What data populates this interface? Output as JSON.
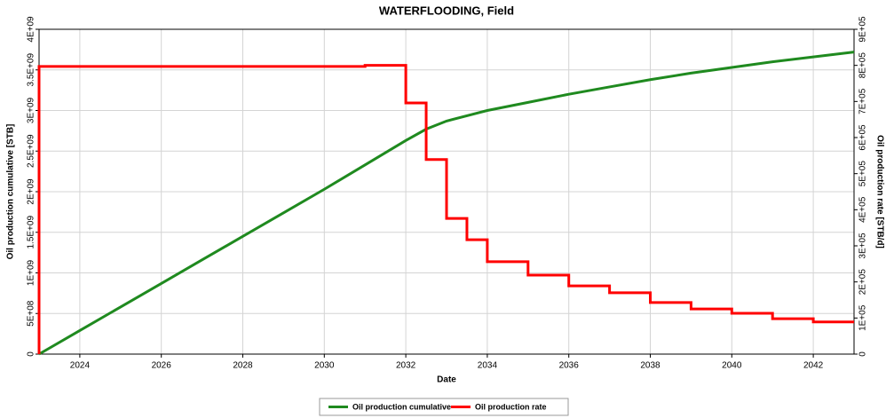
{
  "chart_data": {
    "type": "line",
    "title": "WATERFLOODING, Field",
    "x_label": "Date",
    "y_label": "Oil production cumulative [STB]",
    "y2_label": "Oil production rate [STB/d]",
    "xlim": [
      2023,
      2043
    ],
    "xticks": [
      2024,
      2026,
      2028,
      2030,
      2032,
      2034,
      2036,
      2038,
      2040,
      2042
    ],
    "ylim": [
      0,
      4000000000
    ],
    "yticks": [
      0,
      {
        "value": 500000000,
        "label": "5E+08"
      },
      {
        "value": 1000000000,
        "label": "1E+09"
      },
      {
        "value": 1500000000,
        "label": "1.5E+09"
      },
      {
        "value": 2000000000,
        "label": "2E+09"
      },
      {
        "value": 2500000000,
        "label": "2.5E+09"
      },
      {
        "value": 3000000000,
        "label": "3E+09"
      },
      {
        "value": 3500000000,
        "label": "3.5E+09"
      },
      {
        "value": 4000000000,
        "label": "4E+09"
      }
    ],
    "y2lim": [
      0,
      900000
    ],
    "y2ticks": [
      0,
      {
        "value": 100000,
        "label": "1E+05"
      },
      {
        "value": 200000,
        "label": "2E+05"
      },
      {
        "value": 300000,
        "label": "3E+05"
      },
      {
        "value": 400000,
        "label": "4E+05"
      },
      {
        "value": 500000,
        "label": "5E+05"
      },
      {
        "value": 600000,
        "label": "6E+05"
      },
      {
        "value": 700000,
        "label": "7E+05"
      },
      {
        "value": 800000,
        "label": "8E+05"
      },
      {
        "value": 900000,
        "label": "9E+05"
      }
    ],
    "grid": true,
    "legend": "bottom",
    "series": [
      {
        "name": "Oil production cumulative",
        "color": "#1f8a1f",
        "x": [
          2023,
          2024,
          2025,
          2026,
          2027,
          2028,
          2029,
          2030,
          2031,
          2032,
          2032.5,
          2033,
          2034,
          2035,
          2036,
          2037,
          2038,
          2039,
          2040,
          2041,
          2042,
          2043
        ],
        "values": [
          0,
          290000000,
          580000000,
          870000000,
          1160000000,
          1450000000,
          1740000000,
          2030000000,
          2330000000,
          2630000000,
          2770000000,
          2870000000,
          3000000000,
          3100000000,
          3200000000,
          3290000000,
          3380000000,
          3460000000,
          3530000000,
          3600000000,
          3660000000,
          3720000000
        ]
      },
      {
        "name": "Oil production rate",
        "color": "#ff0000",
        "axis": "y2",
        "x": [
          2023,
          2023,
          2031,
          2031,
          2032,
          2032,
          2032.5,
          2032.5,
          2033,
          2033,
          2033.5,
          2033.5,
          2034,
          2034,
          2035,
          2035,
          2036,
          2036,
          2037,
          2037,
          2038,
          2038,
          2039,
          2039,
          2040,
          2040,
          2041,
          2041,
          2042,
          2042,
          2043
        ],
        "values": [
          0,
          797000,
          797000,
          800000,
          800000,
          696000,
          696000,
          539000,
          539000,
          376000,
          376000,
          317000,
          317000,
          256000,
          256000,
          219000,
          219000,
          189000,
          189000,
          170000,
          170000,
          143000,
          143000,
          125000,
          125000,
          113000,
          113000,
          98000,
          98000,
          89000,
          89000
        ]
      }
    ]
  }
}
